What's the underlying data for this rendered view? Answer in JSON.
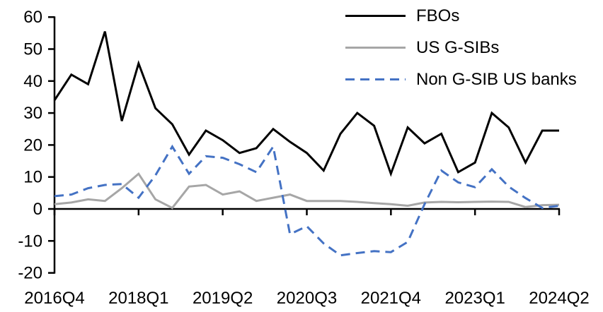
{
  "chart_data": {
    "type": "line",
    "title": "",
    "xlabel": "",
    "ylabel": "",
    "grid": false,
    "legend_position": "top-right",
    "axis_color": "#000000",
    "ylim": [
      -20,
      60
    ],
    "y_ticks": [
      "60",
      "50",
      "40",
      "30",
      "20",
      "10",
      "0",
      "-10",
      "-20"
    ],
    "y_tick_values": [
      60,
      50,
      40,
      30,
      20,
      10,
      0,
      -10,
      -20
    ],
    "x_tick_labels": [
      "2016Q4",
      "2018Q1",
      "2019Q2",
      "2020Q3",
      "2021Q4",
      "2023Q1",
      "2024Q2"
    ],
    "x_tick_every": 5,
    "categories": [
      "2016Q4",
      "2017Q1",
      "2017Q2",
      "2017Q3",
      "2017Q4",
      "2018Q1",
      "2018Q2",
      "2018Q3",
      "2018Q4",
      "2019Q1",
      "2019Q2",
      "2019Q3",
      "2019Q4",
      "2020Q1",
      "2020Q2",
      "2020Q3",
      "2020Q4",
      "2021Q1",
      "2021Q2",
      "2021Q3",
      "2021Q4",
      "2022Q1",
      "2022Q2",
      "2022Q3",
      "2022Q4",
      "2023Q1",
      "2023Q2",
      "2023Q3",
      "2023Q4",
      "2024Q1",
      "2024Q2"
    ],
    "series": [
      {
        "name": "FBOs",
        "color": "#000000",
        "style": "solid",
        "values": [
          34,
          42,
          39,
          55.5,
          27.5,
          45.5,
          31.5,
          26.5,
          17,
          24.5,
          21.5,
          17.5,
          19,
          25,
          21,
          17.5,
          12,
          23.5,
          30,
          26,
          11,
          25.5,
          20.5,
          23.5,
          11.5,
          14.5,
          30,
          25.5,
          14.5,
          24.5,
          24.5
        ]
      },
      {
        "name": "US G-SIBs",
        "color": "#a6a6a6",
        "style": "solid",
        "values": [
          1.5,
          2,
          3,
          2.5,
          6.5,
          11,
          3,
          0.3,
          7,
          7.5,
          4.5,
          5.5,
          2.5,
          3.5,
          4.5,
          2.5,
          2.5,
          2.5,
          2.2,
          1.8,
          1.5,
          1,
          2,
          2.2,
          2.1,
          2.2,
          2.3,
          2.2,
          0.6,
          1.2,
          1.3
        ]
      },
      {
        "name": "Non G-SIB US banks",
        "color": "#4472c4",
        "style": "dashed",
        "values": [
          4,
          4.5,
          6.5,
          7.5,
          7.8,
          3.5,
          10.5,
          19.5,
          11,
          16.5,
          16,
          14,
          11.5,
          19.5,
          -7.9,
          -5.4,
          -10.8,
          -14.5,
          -13.8,
          -13.2,
          -13.5,
          -10.3,
          1.5,
          12,
          8.3,
          6.8,
          12.4,
          7,
          3.4,
          0.3,
          1
        ]
      }
    ]
  }
}
